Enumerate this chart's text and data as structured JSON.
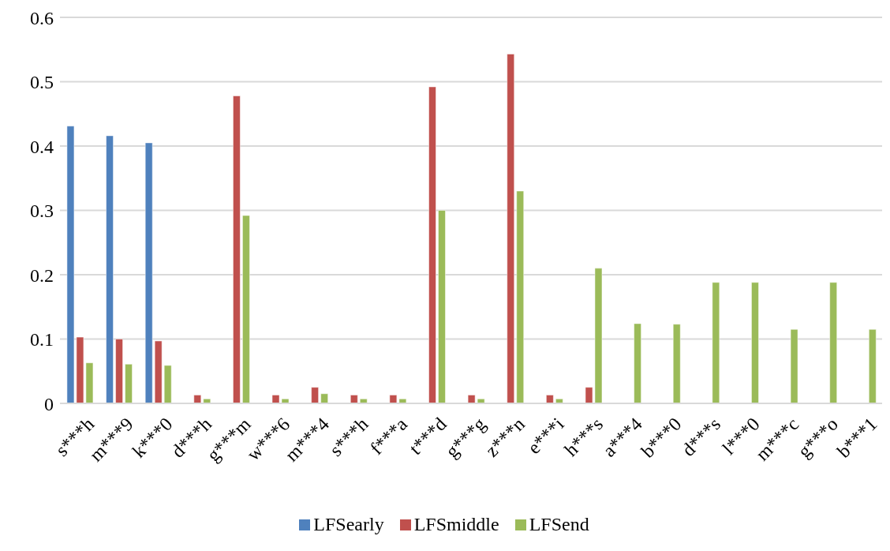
{
  "chart_data": {
    "type": "bar",
    "categories": [
      "s***h",
      "m***9",
      "k***0",
      "d***h",
      "g***m",
      "w***6",
      "m***4",
      "s***h",
      "f***a",
      "t***d",
      "g***g",
      "z***n",
      "e***i",
      "h***s",
      "a***4",
      "b***0",
      "d***s",
      "l***0",
      "m***c",
      "g***o",
      "b***1"
    ],
    "series": [
      {
        "name": "LFSearly",
        "color": "#4f81bd",
        "values": [
          0.431,
          0.416,
          0.405,
          0,
          0,
          0,
          0,
          0,
          0,
          0,
          0,
          0,
          0,
          0,
          0,
          0,
          0,
          0,
          0,
          0,
          0
        ]
      },
      {
        "name": "LFSmiddle",
        "color": "#c0504d",
        "values": [
          0.103,
          0.1,
          0.097,
          0.013,
          0.478,
          0.013,
          0.025,
          0.013,
          0.013,
          0.492,
          0.013,
          0.543,
          0.013,
          0.025,
          0,
          0,
          0,
          0,
          0,
          0,
          0
        ]
      },
      {
        "name": "LFSend",
        "color": "#9bbb59",
        "values": [
          0.063,
          0.061,
          0.059,
          0.007,
          0.292,
          0.007,
          0.015,
          0.007,
          0.007,
          0.3,
          0.007,
          0.33,
          0.007,
          0.21,
          0.124,
          0.123,
          0.188,
          0.188,
          0.115,
          0.188,
          0.115
        ]
      }
    ],
    "ylim": [
      0,
      0.6
    ],
    "yticks": [
      0,
      0.1,
      0.2,
      0.3,
      0.4,
      0.5,
      0.6
    ],
    "grid": "y",
    "legend": "bottom"
  }
}
